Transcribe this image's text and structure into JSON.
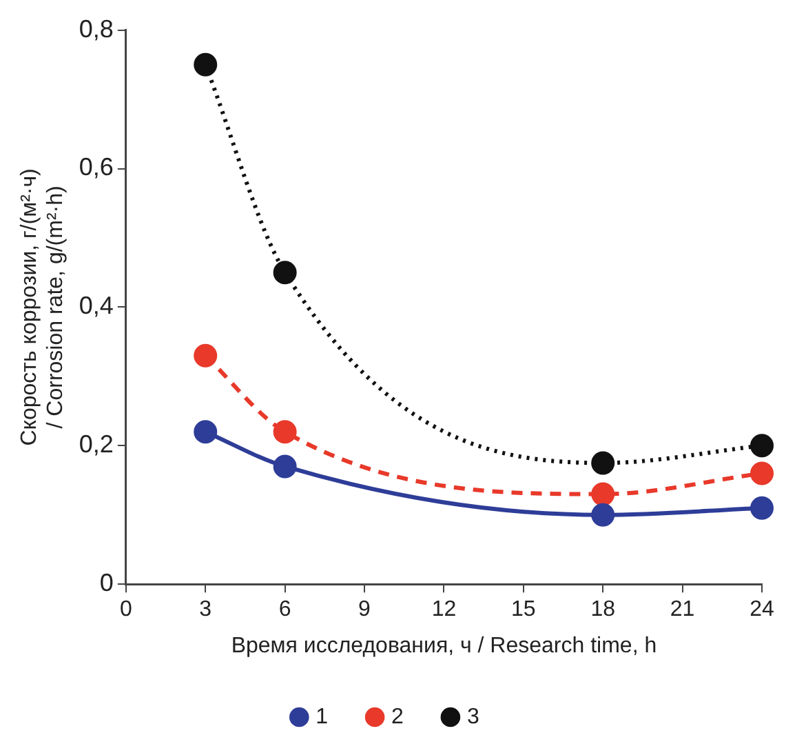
{
  "chart_data": {
    "type": "line",
    "xlabel": "Время исследования, ч / Research time, h",
    "ylabel": "Скорость коррозии, г/(м²·ч) / Corrosion rate, g/(m²·h)",
    "x": [
      3,
      6,
      18,
      24
    ],
    "series": [
      {
        "name": "1",
        "color": "#2e3d98",
        "values": [
          0.22,
          0.17,
          0.1,
          0.11
        ],
        "line_style": "solid"
      },
      {
        "name": "2",
        "color": "#e8392a",
        "values": [
          0.33,
          0.22,
          0.13,
          0.16
        ],
        "line_style": "dashed"
      },
      {
        "name": "3",
        "color": "#111111",
        "values": [
          0.75,
          0.45,
          0.175,
          0.2
        ],
        "line_style": "dotted"
      }
    ],
    "xlim": [
      0,
      24
    ],
    "xticks": [
      0,
      3,
      6,
      9,
      12,
      15,
      18,
      21,
      24
    ],
    "ylim": [
      0,
      0.8
    ],
    "yticks": [
      0,
      {
        "value": 0.2,
        "label": "0,2"
      },
      {
        "value": 0.4,
        "label": "0,4"
      },
      {
        "value": 0.6,
        "label": "0,6"
      },
      {
        "value": 0.8,
        "label": "0,8"
      }
    ],
    "grid": false,
    "legend": "bottom",
    "marker": "circle"
  }
}
